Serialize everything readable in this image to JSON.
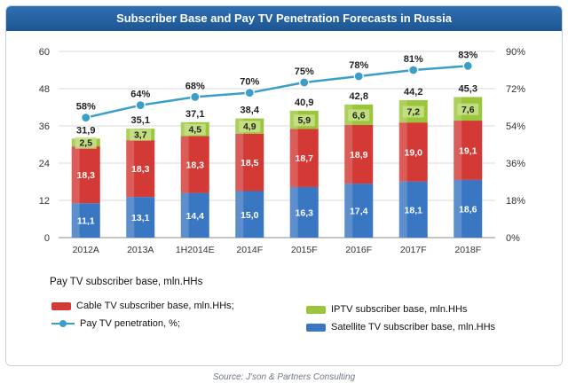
{
  "chart_data": {
    "type": "bar",
    "stacked": true,
    "title": "Subscriber Base and Pay TV Penetration Forecasts in Russia",
    "categories": [
      "2012A",
      "2013A",
      "1H2014E",
      "2014F",
      "2015F",
      "2016F",
      "2017F",
      "2018F"
    ],
    "series": [
      {
        "name": "Satellite TV subscriber base, mln.HHs",
        "color": "#3a77c2",
        "values": [
          "11,1",
          "13,1",
          "14,4",
          "15,0",
          "16,3",
          "17,4",
          "18,1",
          "18,6"
        ],
        "numeric": [
          11.1,
          13.1,
          14.4,
          15.0,
          16.3,
          17.4,
          18.1,
          18.6
        ]
      },
      {
        "name": "Cable TV subscriber base, mln.HHs;",
        "color": "#d33a35",
        "values": [
          "18,3",
          "18,3",
          "18,3",
          "18,5",
          "18,7",
          "18,9",
          "19,0",
          "19,1"
        ],
        "numeric": [
          18.3,
          18.3,
          18.3,
          18.5,
          18.7,
          18.9,
          19.0,
          19.1
        ]
      },
      {
        "name": "IPTV subscriber base, mln.HHs",
        "color": "#9bc53a",
        "values": [
          "2,5",
          "3,7",
          "4,5",
          "4,9",
          "5,9",
          "6,6",
          "7,2",
          "7,6"
        ],
        "numeric": [
          2.5,
          3.7,
          4.5,
          4.9,
          5.9,
          6.6,
          7.2,
          7.6
        ]
      }
    ],
    "totals": {
      "name": "Pay TV subscriber base, mln.HHs",
      "values": [
        "31,9",
        "35,1",
        "37,1",
        "38,4",
        "40,9",
        "42,8",
        "44,2",
        "45,3"
      ],
      "numeric": [
        31.9,
        35.1,
        37.1,
        38.4,
        40.9,
        42.8,
        44.2,
        45.3
      ]
    },
    "line": {
      "name": "Pay TV penetration, %;",
      "color": "#3a9ec9",
      "values": [
        "58%",
        "64%",
        "68%",
        "70%",
        "75%",
        "78%",
        "81%",
        "83%"
      ],
      "numeric": [
        58,
        64,
        68,
        70,
        75,
        78,
        81,
        83
      ]
    },
    "ylim": [
      0,
      60
    ],
    "y_ticks": [
      "0",
      "12",
      "24",
      "36",
      "48",
      "60"
    ],
    "y2lim": [
      0,
      90
    ],
    "y2_ticks": [
      "0%",
      "18%",
      "36%",
      "54%",
      "72%",
      "90%"
    ],
    "grid": true,
    "legend_position": "bottom"
  },
  "legend_title": "Pay TV subscriber base, mln.HHs",
  "source": "Source: J'son & Partners Consulting"
}
